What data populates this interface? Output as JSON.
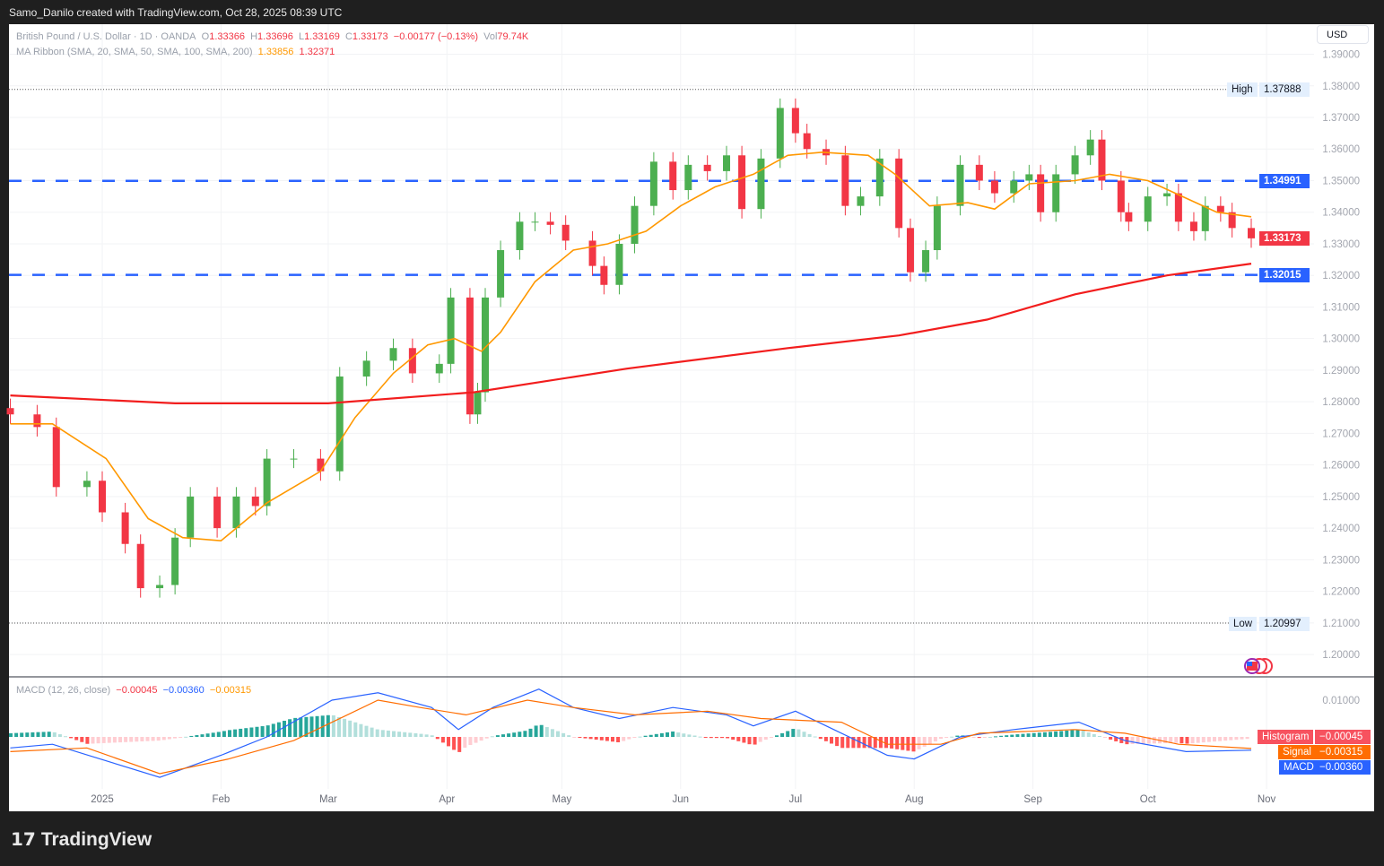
{
  "attribution": "Samo_Danilo created with TradingView.com, Oct 28, 2025 08:39 UTC",
  "brand": "TradingView",
  "currency_button": "USD",
  "legend": {
    "symbol": "British Pound / U.S. Dollar · 1D · OANDA",
    "o_label": "O",
    "o": "1.33366",
    "h_label": "H",
    "h": "1.33696",
    "l_label": "L",
    "l": "1.33169",
    "c_label": "C",
    "c": "1.33173",
    "change": "−0.00177 (−0.13%)",
    "vol_label": "Vol",
    "vol": "79.74K",
    "ma": "MA Ribbon (SMA, 20, SMA, 50, SMA, 100, SMA, 200)",
    "ma_val1": "1.33856",
    "ma_val2": "1.32371",
    "macd": "MACD (12, 26, close)",
    "macd_hist": "−0.00045",
    "macd_val": "−0.00360",
    "macd_signal": "−0.00315"
  },
  "labels": {
    "high_label": "High",
    "high": "1.37888",
    "low_label": "Low",
    "low": "1.20997",
    "last": "1.33173",
    "level1": "1.34991",
    "level2": "1.32015",
    "histogram_label": "Histogram",
    "histogram": "−0.00045",
    "signal_label": "Signal",
    "signal": "−0.00315",
    "macd_label": "MACD",
    "macd": "−0.00360"
  },
  "colors": {
    "up": "#4caf50",
    "down": "#f23645",
    "ma20": "#ff9800",
    "ma200": "#f21d1d",
    "level": "#2962ff",
    "macd": "#2962ff",
    "signal": "#ff6d00"
  },
  "chart_data": [
    {
      "type": "candlestick",
      "title": "British Pound / U.S. Dollar · 1D · OANDA",
      "y_ticks": [
        "1.39000",
        "1.38000",
        "1.37000",
        "1.36000",
        "1.35000",
        "1.34000",
        "1.33000",
        "1.32000",
        "1.31000",
        "1.30000",
        "1.29000",
        "1.28000",
        "1.27000",
        "1.26000",
        "1.25000",
        "1.24000",
        "1.23000",
        "1.22000",
        "1.21000",
        "1.20000"
      ],
      "x_ticks": [
        "2025",
        "Feb",
        "Mar",
        "Apr",
        "May",
        "Jun",
        "Jul",
        "Aug",
        "Sep",
        "Oct",
        "Nov"
      ],
      "ylim": [
        1.195,
        1.39
      ],
      "horizontal_levels": [
        1.34991,
        1.32015
      ],
      "high": 1.37888,
      "low": 1.20997,
      "closes": [
        [
          "2024-12-08",
          1.276
        ],
        [
          "2024-12-15",
          1.272
        ],
        [
          "2024-12-20",
          1.253
        ],
        [
          "2024-12-28",
          1.255
        ],
        [
          "2025-01-01",
          1.245
        ],
        [
          "2025-01-07",
          1.235
        ],
        [
          "2025-01-11",
          1.221
        ],
        [
          "2025-01-16",
          1.222
        ],
        [
          "2025-01-20",
          1.237
        ],
        [
          "2025-01-24",
          1.25
        ],
        [
          "2025-01-31",
          1.24
        ],
        [
          "2025-02-05",
          1.25
        ],
        [
          "2025-02-10",
          1.247
        ],
        [
          "2025-02-13",
          1.262
        ],
        [
          "2025-02-20",
          1.262
        ],
        [
          "2025-02-27",
          1.258
        ],
        [
          "2025-03-04",
          1.288
        ],
        [
          "2025-03-11",
          1.293
        ],
        [
          "2025-03-18",
          1.297
        ],
        [
          "2025-03-23",
          1.289
        ],
        [
          "2025-03-30",
          1.292
        ],
        [
          "2025-04-02",
          1.313
        ],
        [
          "2025-04-07",
          1.276
        ],
        [
          "2025-04-09",
          1.283
        ],
        [
          "2025-04-11",
          1.313
        ],
        [
          "2025-04-15",
          1.328
        ],
        [
          "2025-04-20",
          1.337
        ],
        [
          "2025-04-24",
          1.337
        ],
        [
          "2025-04-28",
          1.336
        ],
        [
          "2025-05-02",
          1.331
        ],
        [
          "2025-05-09",
          1.323
        ],
        [
          "2025-05-12",
          1.317
        ],
        [
          "2025-05-16",
          1.33
        ],
        [
          "2025-05-20",
          1.342
        ],
        [
          "2025-05-25",
          1.356
        ],
        [
          "2025-05-30",
          1.347
        ],
        [
          "2025-06-03",
          1.355
        ],
        [
          "2025-06-08",
          1.353
        ],
        [
          "2025-06-13",
          1.358
        ],
        [
          "2025-06-17",
          1.341
        ],
        [
          "2025-06-22",
          1.357
        ],
        [
          "2025-06-27",
          1.373
        ],
        [
          "2025-07-01",
          1.365
        ],
        [
          "2025-07-04",
          1.36
        ],
        [
          "2025-07-09",
          1.358
        ],
        [
          "2025-07-14",
          1.342
        ],
        [
          "2025-07-18",
          1.345
        ],
        [
          "2025-07-23",
          1.357
        ],
        [
          "2025-07-28",
          1.335
        ],
        [
          "2025-07-31",
          1.321
        ],
        [
          "2025-08-04",
          1.328
        ],
        [
          "2025-08-07",
          1.342
        ],
        [
          "2025-08-13",
          1.355
        ],
        [
          "2025-08-18",
          1.35
        ],
        [
          "2025-08-22",
          1.346
        ],
        [
          "2025-08-27",
          1.35
        ],
        [
          "2025-08-31",
          1.352
        ],
        [
          "2025-09-03",
          1.34
        ],
        [
          "2025-09-07",
          1.352
        ],
        [
          "2025-09-12",
          1.358
        ],
        [
          "2025-09-16",
          1.363
        ],
        [
          "2025-09-19",
          1.35
        ],
        [
          "2025-09-24",
          1.34
        ],
        [
          "2025-09-26",
          1.337
        ],
        [
          "2025-10-01",
          1.345
        ],
        [
          "2025-10-06",
          1.346
        ],
        [
          "2025-10-09",
          1.337
        ],
        [
          "2025-10-13",
          1.334
        ],
        [
          "2025-10-16",
          1.342
        ],
        [
          "2025-10-20",
          1.34
        ],
        [
          "2025-10-23",
          1.335
        ],
        [
          "2025-10-28",
          1.33173
        ]
      ],
      "series": [
        {
          "name": "SMA 20",
          "points": [
            [
              "2024-12-08",
              1.273
            ],
            [
              "2024-12-19",
              1.273
            ],
            [
              "2025-01-02",
              1.262
            ],
            [
              "2025-01-13",
              1.243
            ],
            [
              "2025-01-22",
              1.237
            ],
            [
              "2025-02-01",
              1.236
            ],
            [
              "2025-02-13",
              1.248
            ],
            [
              "2025-02-27",
              1.258
            ],
            [
              "2025-03-08",
              1.275
            ],
            [
              "2025-03-18",
              1.289
            ],
            [
              "2025-03-27",
              1.298
            ],
            [
              "2025-04-03",
              1.3
            ],
            [
              "2025-04-10",
              1.296
            ],
            [
              "2025-04-15",
              1.302
            ],
            [
              "2025-04-24",
              1.318
            ],
            [
              "2025-05-04",
              1.328
            ],
            [
              "2025-05-13",
              1.33
            ],
            [
              "2025-05-23",
              1.334
            ],
            [
              "2025-06-01",
              1.342
            ],
            [
              "2025-06-10",
              1.348
            ],
            [
              "2025-06-20",
              1.352
            ],
            [
              "2025-06-29",
              1.358
            ],
            [
              "2025-07-08",
              1.359
            ],
            [
              "2025-07-20",
              1.358
            ],
            [
              "2025-07-27",
              1.352
            ],
            [
              "2025-08-05",
              1.342
            ],
            [
              "2025-08-15",
              1.343
            ],
            [
              "2025-08-22",
              1.341
            ],
            [
              "2025-08-31",
              1.349
            ],
            [
              "2025-09-12",
              1.35
            ],
            [
              "2025-09-21",
              1.352
            ],
            [
              "2025-10-01",
              1.35
            ],
            [
              "2025-10-10",
              1.345
            ],
            [
              "2025-10-19",
              1.34
            ],
            [
              "2025-10-28",
              1.33856
            ]
          ]
        },
        {
          "name": "SMA 200",
          "points": [
            [
              "2024-12-08",
              1.282
            ],
            [
              "2025-01-20",
              1.2795
            ],
            [
              "2025-03-01",
              1.2795
            ],
            [
              "2025-04-08",
              1.283
            ],
            [
              "2025-05-18",
              1.2905
            ],
            [
              "2025-06-29",
              1.297
            ],
            [
              "2025-07-28",
              1.301
            ],
            [
              "2025-08-20",
              1.306
            ],
            [
              "2025-09-12",
              1.314
            ],
            [
              "2025-10-06",
              1.32
            ],
            [
              "2025-10-28",
              1.32371
            ]
          ]
        }
      ]
    },
    {
      "type": "line",
      "title": "MACD (12, 26, close)",
      "y_ticks": [
        "0.01000"
      ],
      "series": [
        {
          "name": "MACD",
          "points": [
            [
              "2024-12-08",
              -0.003
            ],
            [
              "2024-12-19",
              -0.002
            ],
            [
              "2025-01-16",
              -0.011
            ],
            [
              "2025-02-01",
              -0.005
            ],
            [
              "2025-02-13",
              0.0
            ],
            [
              "2025-03-02",
              0.01
            ],
            [
              "2025-03-14",
              0.012
            ],
            [
              "2025-03-28",
              0.008
            ],
            [
              "2025-04-04",
              0.002
            ],
            [
              "2025-04-13",
              0.008
            ],
            [
              "2025-04-25",
              0.013
            ],
            [
              "2025-05-04",
              0.008
            ],
            [
              "2025-05-16",
              0.005
            ],
            [
              "2025-05-30",
              0.008
            ],
            [
              "2025-06-13",
              0.006
            ],
            [
              "2025-06-20",
              0.003
            ],
            [
              "2025-07-01",
              0.007
            ],
            [
              "2025-07-11",
              0.002
            ],
            [
              "2025-07-25",
              -0.005
            ],
            [
              "2025-08-01",
              -0.006
            ],
            [
              "2025-08-13",
              0.0
            ],
            [
              "2025-08-27",
              0.002
            ],
            [
              "2025-09-13",
              0.004
            ],
            [
              "2025-09-25",
              -0.001
            ],
            [
              "2025-10-11",
              -0.004
            ],
            [
              "2025-10-28",
              -0.0036
            ]
          ]
        },
        {
          "name": "Signal",
          "points": [
            [
              "2024-12-08",
              -0.004
            ],
            [
              "2024-12-28",
              -0.003
            ],
            [
              "2025-01-16",
              -0.01
            ],
            [
              "2025-02-03",
              -0.006
            ],
            [
              "2025-02-20",
              -0.001
            ],
            [
              "2025-03-14",
              0.01
            ],
            [
              "2025-03-25",
              0.008
            ],
            [
              "2025-04-06",
              0.006
            ],
            [
              "2025-04-22",
              0.01
            ],
            [
              "2025-05-04",
              0.008
            ],
            [
              "2025-05-20",
              0.006
            ],
            [
              "2025-06-08",
              0.007
            ],
            [
              "2025-06-22",
              0.005
            ],
            [
              "2025-07-13",
              0.004
            ],
            [
              "2025-07-25",
              -0.002
            ],
            [
              "2025-08-08",
              -0.002
            ],
            [
              "2025-08-18",
              0.001
            ],
            [
              "2025-09-12",
              0.002
            ],
            [
              "2025-09-25",
              0.001
            ],
            [
              "2025-10-09",
              -0.002
            ],
            [
              "2025-10-28",
              -0.00315
            ]
          ]
        }
      ],
      "histogram_last": -0.00045
    }
  ]
}
